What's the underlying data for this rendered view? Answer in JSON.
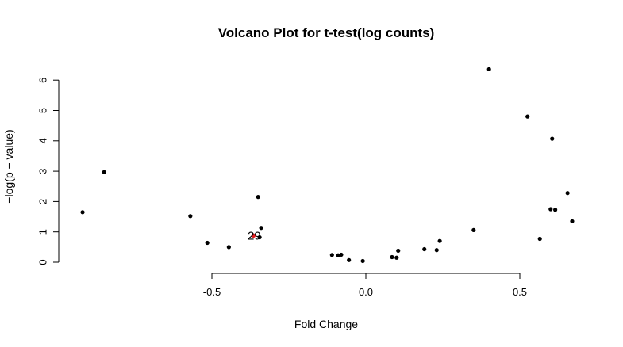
{
  "chart_data": {
    "type": "scatter",
    "title": "Volcano Plot for t-test(log counts)",
    "xlabel": "Fold Change",
    "ylabel": "−log(p − value)",
    "xticks": [
      -0.5,
      0.0,
      0.5
    ],
    "xtick_labels": [
      "-0.5",
      "0.0",
      "0.5"
    ],
    "yticks": [
      0,
      1,
      2,
      3,
      4,
      5,
      6
    ],
    "ytick_labels": [
      "0",
      "1",
      "2",
      "3",
      "4",
      "5",
      "6"
    ],
    "xlim": [
      -0.95,
      0.7
    ],
    "ylim": [
      0,
      6.4
    ],
    "grid": false,
    "point_color": "#000000",
    "highlight_color": "#e41a1c",
    "points": [
      {
        "x": -0.92,
        "y": 1.65
      },
      {
        "x": -0.85,
        "y": 2.97
      },
      {
        "x": -0.57,
        "y": 1.52
      },
      {
        "x": -0.515,
        "y": 0.64
      },
      {
        "x": -0.445,
        "y": 0.5
      },
      {
        "x": -0.35,
        "y": 2.15
      },
      {
        "x": -0.34,
        "y": 1.13
      },
      {
        "x": -0.345,
        "y": 0.82
      },
      {
        "x": -0.11,
        "y": 0.24
      },
      {
        "x": -0.09,
        "y": 0.23
      },
      {
        "x": -0.08,
        "y": 0.25
      },
      {
        "x": -0.055,
        "y": 0.07
      },
      {
        "x": -0.01,
        "y": 0.04
      },
      {
        "x": 0.085,
        "y": 0.17
      },
      {
        "x": 0.1,
        "y": 0.15
      },
      {
        "x": 0.105,
        "y": 0.38
      },
      {
        "x": 0.19,
        "y": 0.43
      },
      {
        "x": 0.23,
        "y": 0.4
      },
      {
        "x": 0.24,
        "y": 0.7
      },
      {
        "x": 0.35,
        "y": 1.06
      },
      {
        "x": 0.4,
        "y": 6.36
      },
      {
        "x": 0.525,
        "y": 4.8
      },
      {
        "x": 0.565,
        "y": 0.77
      },
      {
        "x": 0.6,
        "y": 1.75
      },
      {
        "x": 0.605,
        "y": 4.07
      },
      {
        "x": 0.615,
        "y": 1.73
      },
      {
        "x": 0.655,
        "y": 2.28
      },
      {
        "x": 0.67,
        "y": 1.35
      }
    ],
    "highlight": {
      "x": -0.365,
      "y": 0.88,
      "label": "29"
    }
  }
}
